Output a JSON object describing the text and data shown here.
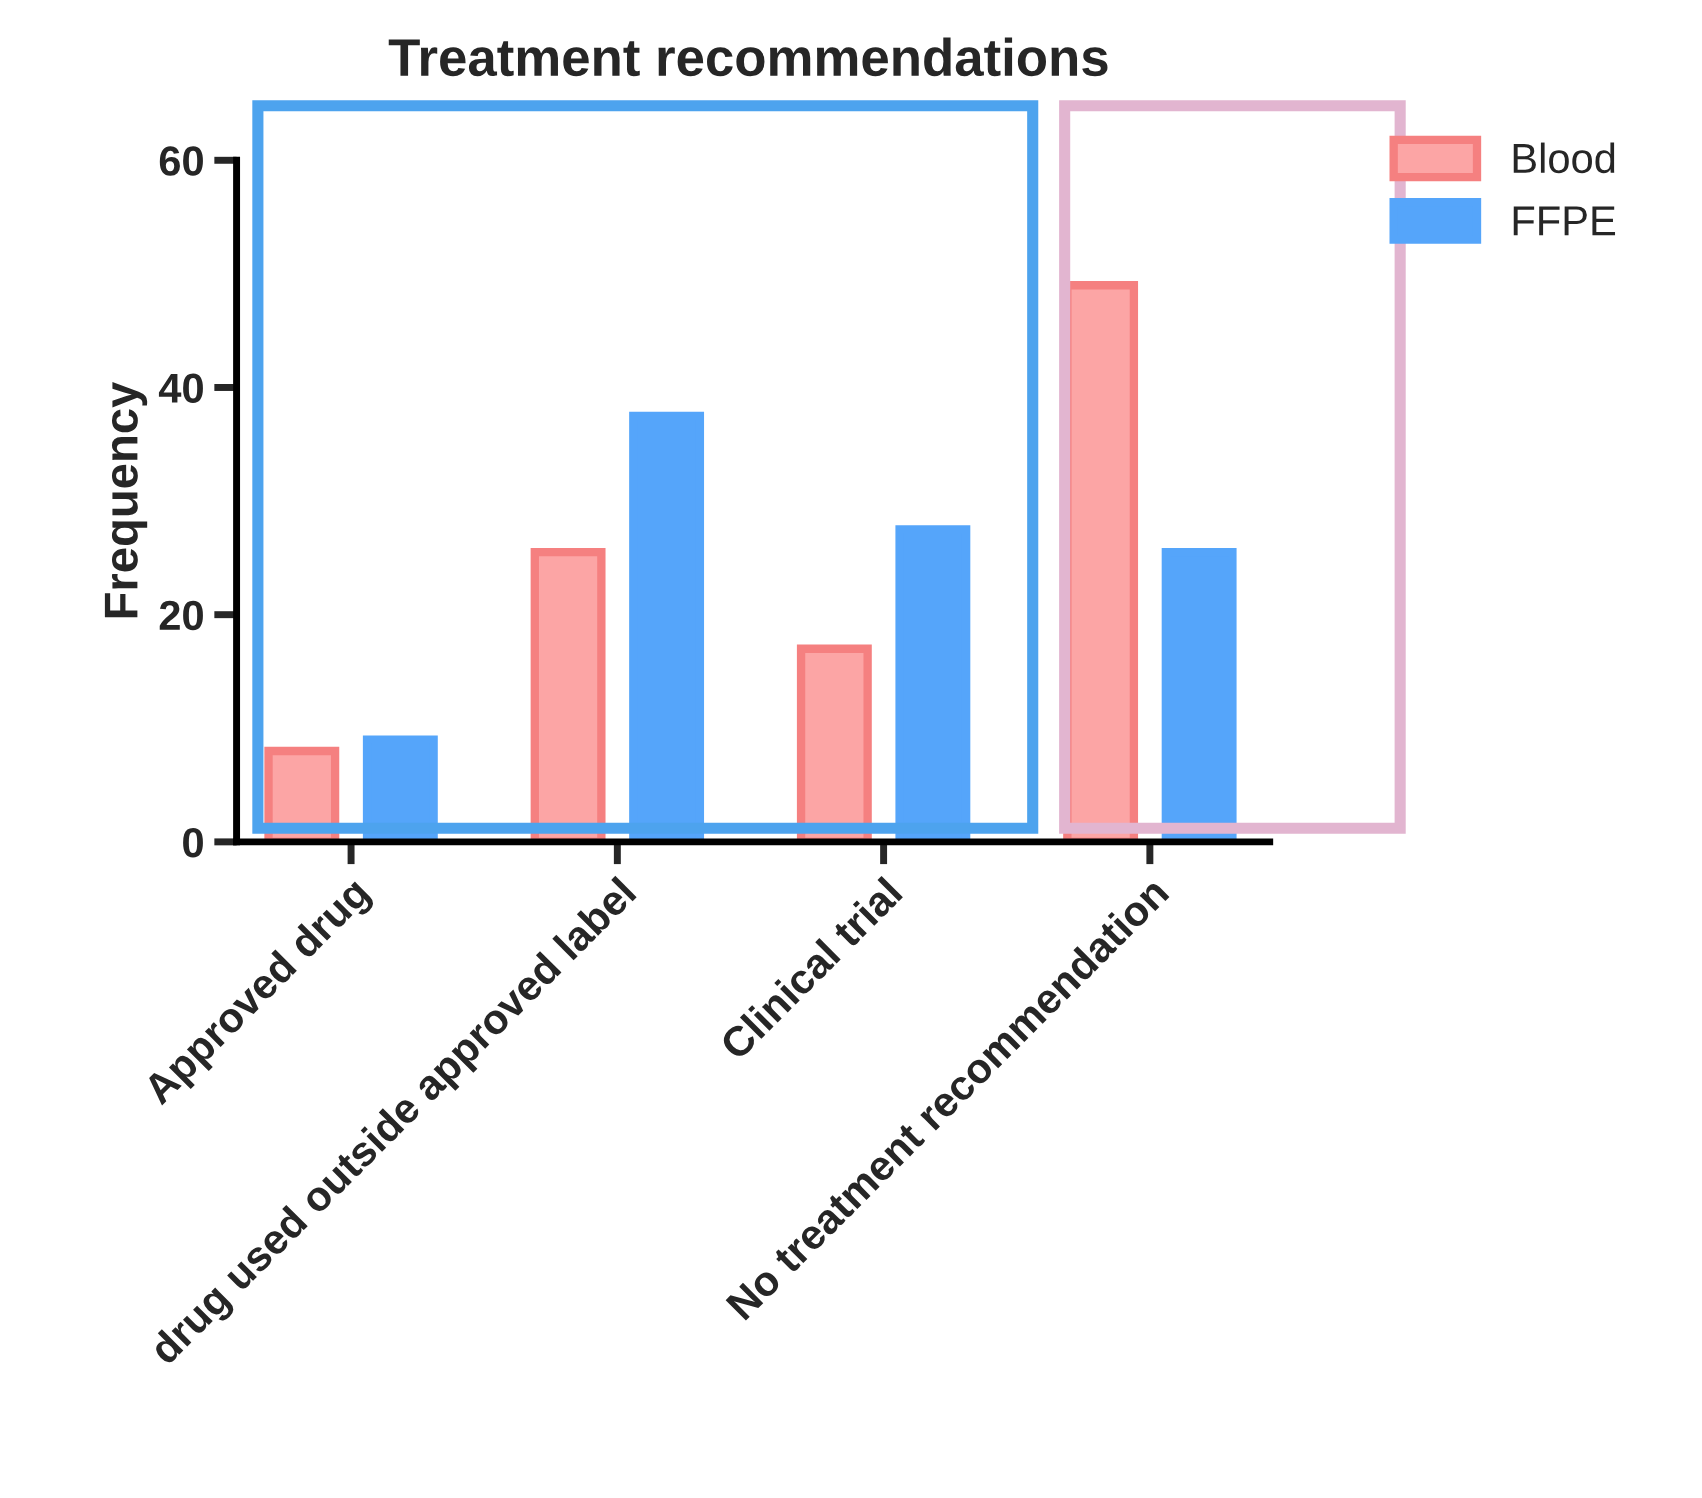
{
  "chart_data": {
    "type": "bar",
    "title": "Treatment recommendations",
    "ylabel": "Frequency",
    "categories": [
      "Approved drug",
      "drug used outside approved label",
      "Clinical trial",
      "No treatment recommendation"
    ],
    "series": [
      {
        "name": "Blood",
        "color": "#fca5a5",
        "values": [
          8,
          25.5,
          17,
          49
        ]
      },
      {
        "name": "FFPE",
        "color": "#55a5fa",
        "values": [
          9,
          37.5,
          27.5,
          25.5
        ]
      }
    ],
    "ylim": [
      0,
      60
    ],
    "yticks": [
      0,
      20,
      40,
      60
    ],
    "grid": false,
    "legend": "top right"
  }
}
